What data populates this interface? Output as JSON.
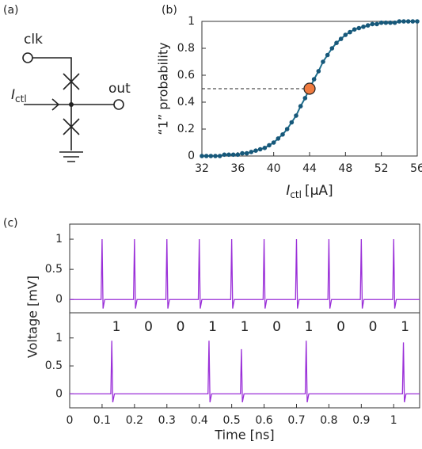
{
  "panels": {
    "a": "(a)",
    "b": "(b)",
    "c": "(c)"
  },
  "circuit": {
    "clk": "clk",
    "out": "out",
    "current": {
      "symbol": "I",
      "subscript": "ctl"
    }
  },
  "chart_data": [
    {
      "type": "line",
      "ylabel": "“1” probability",
      "xlabel": {
        "symbol": "I",
        "subscript": "ctl",
        "unit": "[μA]"
      },
      "x": [
        32,
        32.5,
        33,
        33.5,
        34,
        34.5,
        35,
        35.5,
        36,
        36.5,
        37,
        37.5,
        38,
        38.5,
        39,
        39.5,
        40,
        40.5,
        41,
        41.5,
        42,
        42.5,
        43,
        43.5,
        44,
        44.5,
        45,
        45.5,
        46,
        46.5,
        47,
        47.5,
        48,
        48.5,
        49,
        49.5,
        50,
        50.5,
        51,
        51.5,
        52,
        52.5,
        53,
        53.5,
        54,
        54.5,
        55,
        55.5,
        56
      ],
      "values": [
        0,
        0,
        0,
        0,
        0,
        0.01,
        0.01,
        0.01,
        0.01,
        0.02,
        0.02,
        0.03,
        0.04,
        0.05,
        0.06,
        0.08,
        0.1,
        0.13,
        0.16,
        0.2,
        0.25,
        0.3,
        0.37,
        0.43,
        0.5,
        0.57,
        0.63,
        0.7,
        0.75,
        0.8,
        0.84,
        0.87,
        0.9,
        0.92,
        0.94,
        0.95,
        0.96,
        0.97,
        0.98,
        0.98,
        0.99,
        0.99,
        0.99,
        0.99,
        1,
        1,
        1,
        1,
        1
      ],
      "color": "#1f6e8c",
      "marker_color": "#17587a",
      "highlight": {
        "x": 44,
        "y": 0.5,
        "color": "#f07b3f"
      },
      "xlim": [
        32,
        56
      ],
      "ylim": [
        0,
        1
      ],
      "xticks": [
        32,
        36,
        40,
        44,
        48,
        52,
        56
      ],
      "yticks": [
        0,
        0.2,
        0.4,
        0.6,
        0.8,
        1
      ]
    },
    {
      "type": "line",
      "ylabel": "Voltage [mV]",
      "color": "#9a2fd8",
      "x": [
        0,
        0.097,
        0.1,
        0.103,
        0.108,
        0.197,
        0.2,
        0.203,
        0.208,
        0.297,
        0.3,
        0.303,
        0.308,
        0.397,
        0.4,
        0.403,
        0.408,
        0.497,
        0.5,
        0.503,
        0.508,
        0.597,
        0.6,
        0.603,
        0.608,
        0.697,
        0.7,
        0.703,
        0.708,
        0.797,
        0.8,
        0.803,
        0.808,
        0.897,
        0.9,
        0.903,
        0.908,
        0.997,
        1,
        1.003,
        1.008,
        1.08
      ],
      "values": [
        0,
        0,
        1,
        -0.15,
        0,
        0,
        1,
        -0.15,
        0,
        0,
        1,
        -0.15,
        0,
        0,
        1,
        -0.15,
        0,
        0,
        1,
        -0.15,
        0,
        0,
        1,
        -0.15,
        0,
        0,
        1,
        -0.15,
        0,
        0,
        1,
        -0.15,
        0,
        0,
        1,
        -0.15,
        0,
        0,
        1,
        -0.15,
        0,
        0
      ],
      "xlim": [
        0,
        1.08
      ],
      "ylim": [
        -0.22,
        1.25
      ],
      "yticks": [
        0,
        0.5,
        1
      ]
    },
    {
      "type": "line",
      "color": "#9a2fd8",
      "bits": [
        1,
        0,
        0,
        1,
        1,
        0,
        1,
        0,
        0,
        1
      ],
      "xlabel": "Time [ns]",
      "x": [
        0,
        0.127,
        0.13,
        0.133,
        0.138,
        0.427,
        0.43,
        0.433,
        0.438,
        0.527,
        0.53,
        0.533,
        0.538,
        0.727,
        0.73,
        0.733,
        0.738,
        1.027,
        1.03,
        1.033,
        1.038,
        1.08
      ],
      "values": [
        0,
        0,
        0.95,
        -0.15,
        0,
        0,
        0.95,
        -0.15,
        0,
        0,
        0.8,
        -0.15,
        0,
        0,
        0.95,
        -0.15,
        0,
        0,
        0.92,
        -0.15,
        0,
        0
      ],
      "xlim": [
        0,
        1.08
      ],
      "ylim": [
        -0.25,
        1.45
      ],
      "yticks": [
        0,
        0.5,
        1
      ],
      "xticks": [
        0,
        0.1,
        0.2,
        0.3,
        0.4,
        0.5,
        0.6,
        0.7,
        0.8,
        0.9,
        1
      ]
    }
  ]
}
